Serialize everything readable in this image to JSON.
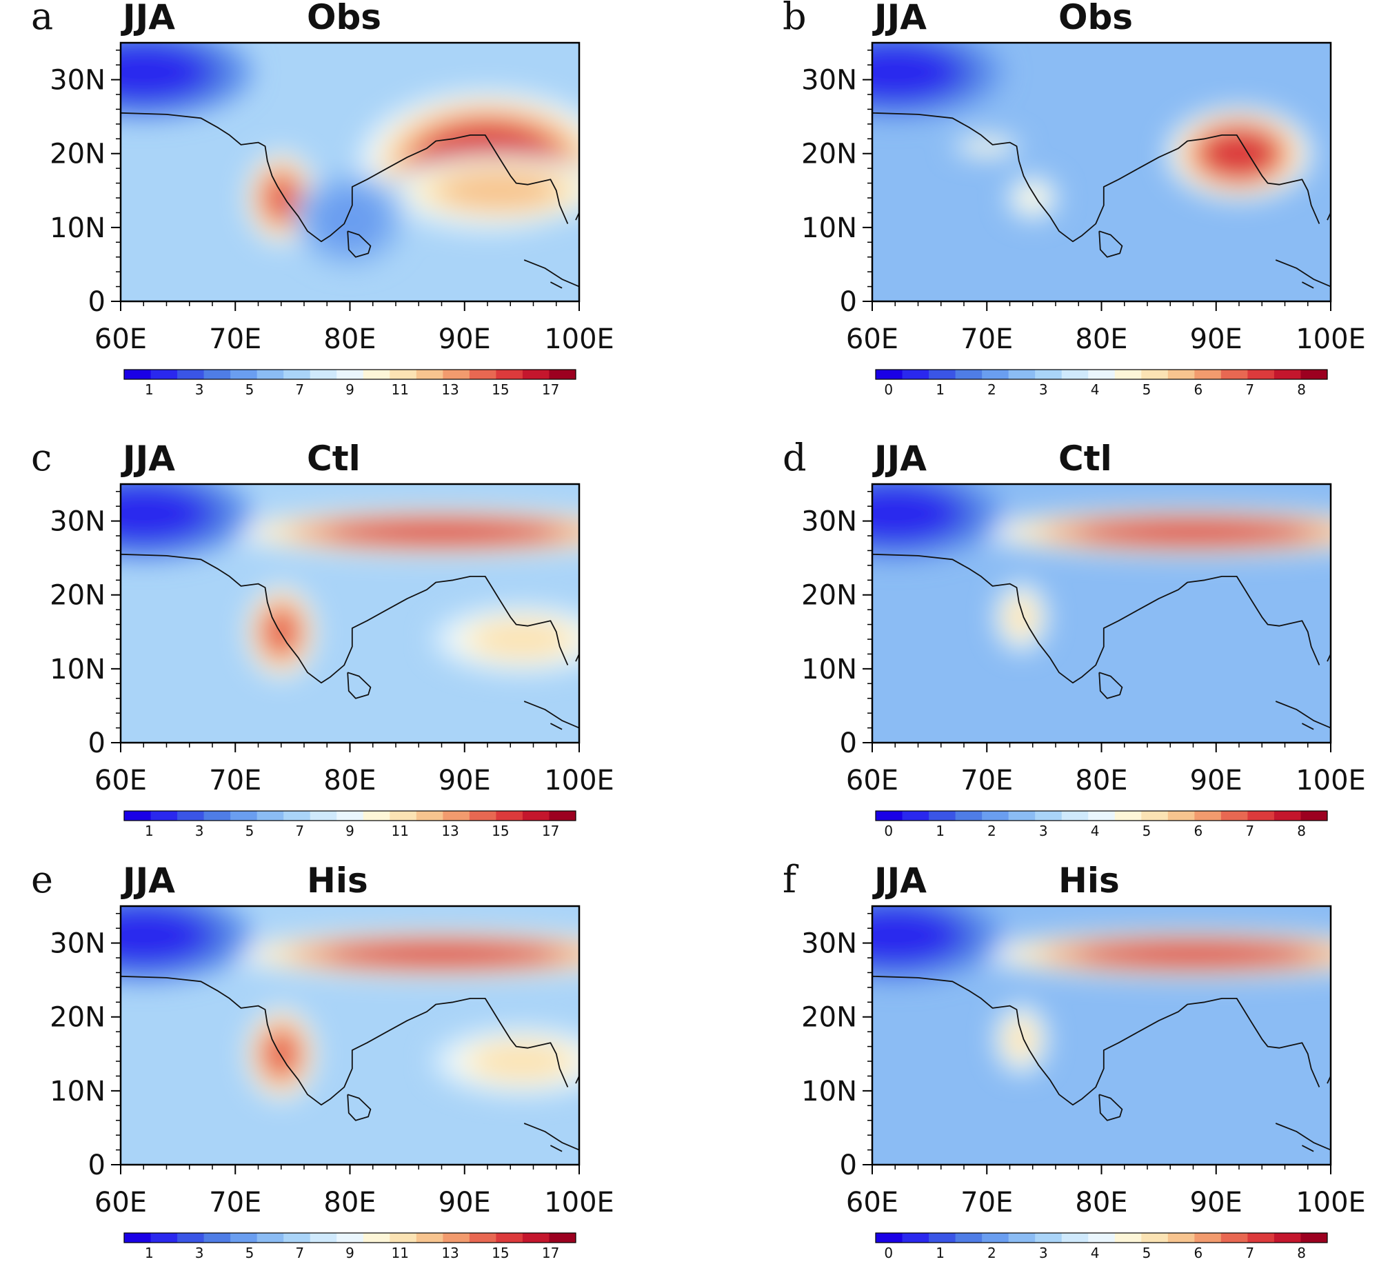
{
  "figure": {
    "panels": [
      {
        "id": "a",
        "letter": "a",
        "season": "JJA",
        "label": "Obs",
        "scale": "s1",
        "bands": [
          {
            "x": 870,
            "y": 18,
            "rx": 90,
            "ry": 75,
            "v": 16.5
          },
          {
            "x": 730,
            "y": 20,
            "rx": 35,
            "ry": 25,
            "v": 13
          },
          {
            "x": 740,
            "y": 14,
            "rx": 15,
            "ry": 30,
            "v": 15
          },
          {
            "x": 380,
            "y": 15,
            "rx": 80,
            "ry": 200,
            "v": 15
          }
        ],
        "blobs": [
          {
            "lon": 92,
            "lat": 19,
            "rlon": 7,
            "rlat": 6,
            "v": 17
          },
          {
            "lon": 93,
            "lat": 15,
            "rlon": 6,
            "rlat": 3,
            "v": 14
          },
          {
            "lon": 74,
            "lat": 14,
            "rlon": 2,
            "rlat": 4,
            "v": 16
          },
          {
            "lon": 80,
            "lat": 11,
            "rlon": 3,
            "rlat": 4,
            "v": 4
          },
          {
            "lon": 62,
            "lat": 31,
            "rlon": 6,
            "rlat": 4,
            "v": 0
          }
        ]
      },
      {
        "id": "b",
        "letter": "b",
        "season": "JJA",
        "label": "Obs",
        "scale": "s2",
        "blobs": [
          {
            "lon": 92,
            "lat": 20,
            "rlon": 4,
            "rlat": 4,
            "v": 8
          },
          {
            "lon": 74,
            "lat": 14,
            "rlon": 1.5,
            "rlat": 2,
            "v": 5
          },
          {
            "lon": 70,
            "lat": 21,
            "rlon": 2,
            "rlat": 1,
            "v": 5
          },
          {
            "lon": 62,
            "lat": 31,
            "rlon": 6,
            "rlat": 4,
            "v": 0
          }
        ]
      },
      {
        "id": "c",
        "letter": "c",
        "season": "JJA",
        "label": "Ctl",
        "scale": "s1",
        "blobs": [
          {
            "lon": 88,
            "lat": 28.5,
            "rlon": 12,
            "rlat": 2,
            "v": 17
          },
          {
            "lon": 74,
            "lat": 15,
            "rlon": 2,
            "rlat": 4,
            "v": 16
          },
          {
            "lon": 95,
            "lat": 14,
            "rlon": 5,
            "rlat": 3,
            "v": 12
          },
          {
            "lon": 62,
            "lat": 31,
            "rlon": 6,
            "rlat": 4,
            "v": 0
          }
        ]
      },
      {
        "id": "d",
        "letter": "d",
        "season": "JJA",
        "label": "Ctl",
        "scale": "s2",
        "blobs": [
          {
            "lon": 88,
            "lat": 28.5,
            "rlon": 12,
            "rlat": 2,
            "v": 8
          },
          {
            "lon": 73,
            "lat": 17,
            "rlon": 1.5,
            "rlat": 3,
            "v": 6
          },
          {
            "lon": 62,
            "lat": 31,
            "rlon": 6,
            "rlat": 4,
            "v": 0
          }
        ]
      },
      {
        "id": "e",
        "letter": "e",
        "season": "JJA",
        "label": "His",
        "scale": "s1",
        "blobs": [
          {
            "lon": 88,
            "lat": 28.5,
            "rlon": 12,
            "rlat": 2,
            "v": 17
          },
          {
            "lon": 74,
            "lat": 15,
            "rlon": 2,
            "rlat": 4,
            "v": 16
          },
          {
            "lon": 95,
            "lat": 14,
            "rlon": 5,
            "rlat": 3,
            "v": 12
          },
          {
            "lon": 62,
            "lat": 31,
            "rlon": 6,
            "rlat": 4,
            "v": 0
          }
        ]
      },
      {
        "id": "f",
        "letter": "f",
        "season": "JJA",
        "label": "His",
        "scale": "s2",
        "blobs": [
          {
            "lon": 88,
            "lat": 28.5,
            "rlon": 12,
            "rlat": 2,
            "v": 8
          },
          {
            "lon": 73,
            "lat": 17,
            "rlon": 1.5,
            "rlat": 3,
            "v": 6
          },
          {
            "lon": 62,
            "lat": 31,
            "rlon": 6,
            "rlat": 4,
            "v": 0
          }
        ]
      }
    ],
    "x_ticks": [
      "60E",
      "70E",
      "80E",
      "90E",
      "100E"
    ],
    "y_ticks": [
      "0",
      "10N",
      "20N",
      "30N"
    ],
    "lon_range": [
      60,
      100
    ],
    "lat_range": [
      0,
      35
    ],
    "colorbar_scales": {
      "s1": {
        "labels": [
          "1",
          "3",
          "5",
          "7",
          "9",
          "11",
          "13",
          "15",
          "17"
        ],
        "min": 0,
        "max": 18
      },
      "s2": {
        "labels": [
          "0",
          "1",
          "2",
          "3",
          "4",
          "5",
          "6",
          "7",
          "8"
        ],
        "min": -0.25,
        "max": 8.5
      }
    },
    "palette": [
      "#1a00e6",
      "#2a28ee",
      "#3a55e6",
      "#4f7de6",
      "#6a9ef0",
      "#8bbcf4",
      "#aad4f8",
      "#cfe9fc",
      "#eaf6fd",
      "#fdf6d8",
      "#fbe3b4",
      "#f7c48f",
      "#f29b6e",
      "#e86852",
      "#dc3a3c",
      "#c4162d",
      "#9c0020"
    ]
  }
}
